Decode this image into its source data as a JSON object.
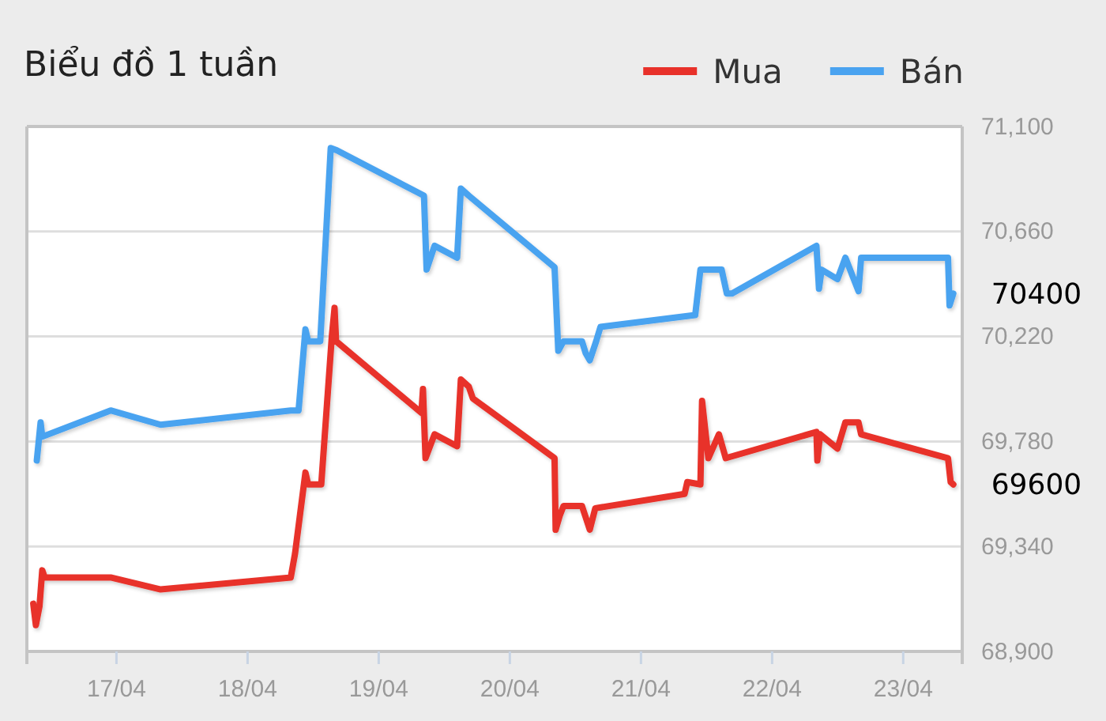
{
  "chart_data": {
    "type": "line",
    "title": "Biểu đồ 1 tuần",
    "legend": "top right",
    "grid": "y",
    "marker": "none",
    "line_style": "solid",
    "xlim": [
      "--04-16T07:36",
      "--04-23T10:48"
    ],
    "xticks": [
      {
        "value": "--04-17",
        "label": "17/04"
      },
      {
        "value": "--04-18",
        "label": "18/04"
      },
      {
        "value": "--04-19",
        "label": "19/04"
      },
      {
        "value": "--04-20",
        "label": "20/04"
      },
      {
        "value": "--04-21",
        "label": "21/04"
      },
      {
        "value": "--04-22",
        "label": "22/04"
      },
      {
        "value": "--04-23",
        "label": "23/04"
      }
    ],
    "ylim": [
      68900,
      71100
    ],
    "yticks": [
      {
        "value": 68900,
        "label": "68,900"
      },
      {
        "value": 69340,
        "label": "69,340"
      },
      {
        "value": 69780,
        "label": "69,780"
      },
      {
        "value": 70220,
        "label": "70,220"
      },
      {
        "value": 70660,
        "label": "70,660"
      },
      {
        "value": 71100,
        "label": "71,100"
      }
    ],
    "series": [
      {
        "name": "Mua",
        "color": "#e8312a",
        "x": [
          "--04-16T08:46",
          "--04-16T09:15",
          "--04-16T09:55",
          "--04-16T10:25",
          "--04-16T10:52",
          "--04-16T22:56",
          "--04-17T08:05",
          "--04-18T07:54",
          "--04-18T08:41",
          "--04-18T10:35",
          "--04-18T11:05",
          "--04-18T13:29",
          "--04-18T15:25",
          "--04-18T15:55",
          "--04-18T16:12",
          "--04-19T07:49",
          "--04-19T08:06",
          "--04-19T08:34",
          "--04-19T10:13",
          "--04-19T14:21",
          "--04-19T15:02",
          "--04-19T16:29",
          "--04-19T17:14",
          "--04-20T08:11",
          "--04-20T08:23",
          "--04-20T09:09",
          "--04-20T09:50",
          "--04-20T13:12",
          "--04-20T14:38",
          "--04-20T15:38",
          "--04-21T07:59",
          "--04-21T08:29",
          "--04-21T10:53",
          "--04-21T11:11",
          "--04-21T12:20",
          "--04-21T14:16",
          "--04-21T15:31",
          "--04-22T08:07",
          "--04-22T08:17",
          "--04-22T08:47",
          "--04-22T11:58",
          "--04-22T13:25",
          "--04-22T15:49",
          "--04-22T16:18",
          "--04-23T08:12",
          "--04-23T08:41",
          "--04-23T09:10"
        ],
        "values": [
          69100,
          69010,
          69090,
          69240,
          69210,
          69210,
          69160,
          69210,
          69310,
          69650,
          69600,
          69600,
          70220,
          70340,
          70200,
          69900,
          70000,
          69710,
          69810,
          69760,
          70040,
          70010,
          69960,
          69710,
          69410,
          69470,
          69510,
          69510,
          69410,
          69500,
          69560,
          69610,
          69600,
          69950,
          69710,
          69810,
          69710,
          69820,
          69700,
          69810,
          69750,
          69860,
          69860,
          69810,
          69710,
          69610,
          69600
        ]
      },
      {
        "name": "Bán",
        "color": "#4aa3f0",
        "x": [
          "--04-16T09:25",
          "--04-16T10:07",
          "--04-16T10:25",
          "--04-16T22:56",
          "--04-17T08:05",
          "--04-18T07:54",
          "--04-18T09:20",
          "--04-18T10:35",
          "--04-18T11:05",
          "--04-18T13:18",
          "--04-18T15:13",
          "--04-18T16:22",
          "--04-19T08:17",
          "--04-19T08:46",
          "--04-19T10:13",
          "--04-19T14:21",
          "--04-19T15:02",
          "--04-19T16:29",
          "--04-20T08:11",
          "--04-20T08:52",
          "--04-20T09:50",
          "--04-20T13:12",
          "--04-20T13:53",
          "--04-20T14:38",
          "--04-20T15:48",
          "--04-20T16:35",
          "--04-21T09:56",
          "--04-21T10:53",
          "--04-21T14:46",
          "--04-21T15:43",
          "--04-21T16:40",
          "--04-22T08:07",
          "--04-22T08:35",
          "--04-22T09:04",
          "--04-22T11:58",
          "--04-22T13:25",
          "--04-22T15:49",
          "--04-22T16:18",
          "--04-23T08:12",
          "--04-23T08:29",
          "--04-23T09:10"
        ],
        "values": [
          69700,
          69860,
          69800,
          69910,
          69850,
          69910,
          69910,
          70250,
          70200,
          70200,
          71010,
          71000,
          70810,
          70500,
          70600,
          70550,
          70840,
          70810,
          70510,
          70160,
          70200,
          70200,
          70150,
          70120,
          70200,
          70260,
          70310,
          70500,
          70500,
          70400,
          70400,
          70600,
          70420,
          70500,
          70460,
          70550,
          70410,
          70550,
          70550,
          70350,
          70400
        ]
      }
    ],
    "annotations": [
      {
        "text": "70400",
        "x": "--04-23T09:10",
        "y": 70400
      },
      {
        "text": "69600",
        "x": "--04-23T09:10",
        "y": 69600
      }
    ]
  }
}
